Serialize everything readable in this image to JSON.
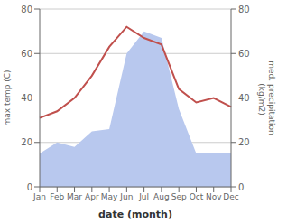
{
  "chart_data": {
    "type": "line",
    "categories": [
      "Jan",
      "Feb",
      "Mar",
      "Apr",
      "May",
      "Jun",
      "Jul",
      "Aug",
      "Sep",
      "Oct",
      "Nov",
      "Dec"
    ],
    "series": [
      {
        "type": "area",
        "axis": "y2",
        "color": "#b8c8ee",
        "values": [
          15,
          20,
          18,
          25,
          26,
          60,
          70,
          67,
          35,
          15,
          15,
          15
        ]
      },
      {
        "type": "line",
        "color": "#c0504d",
        "values": [
          31,
          34,
          40,
          50,
          63,
          72,
          67,
          64,
          44,
          38,
          40,
          36
        ]
      }
    ],
    "xlabel": "date (month)",
    "ylabel": "max temp (C)",
    "y2label": "med. precipitation\n (kg/m2)",
    "ylim": [
      0,
      80
    ],
    "yticks": [
      0,
      20,
      40,
      60,
      80
    ],
    "y2lim": [
      0,
      80
    ],
    "y2ticks": [
      0,
      20,
      40,
      60,
      80
    ],
    "grid": true
  }
}
